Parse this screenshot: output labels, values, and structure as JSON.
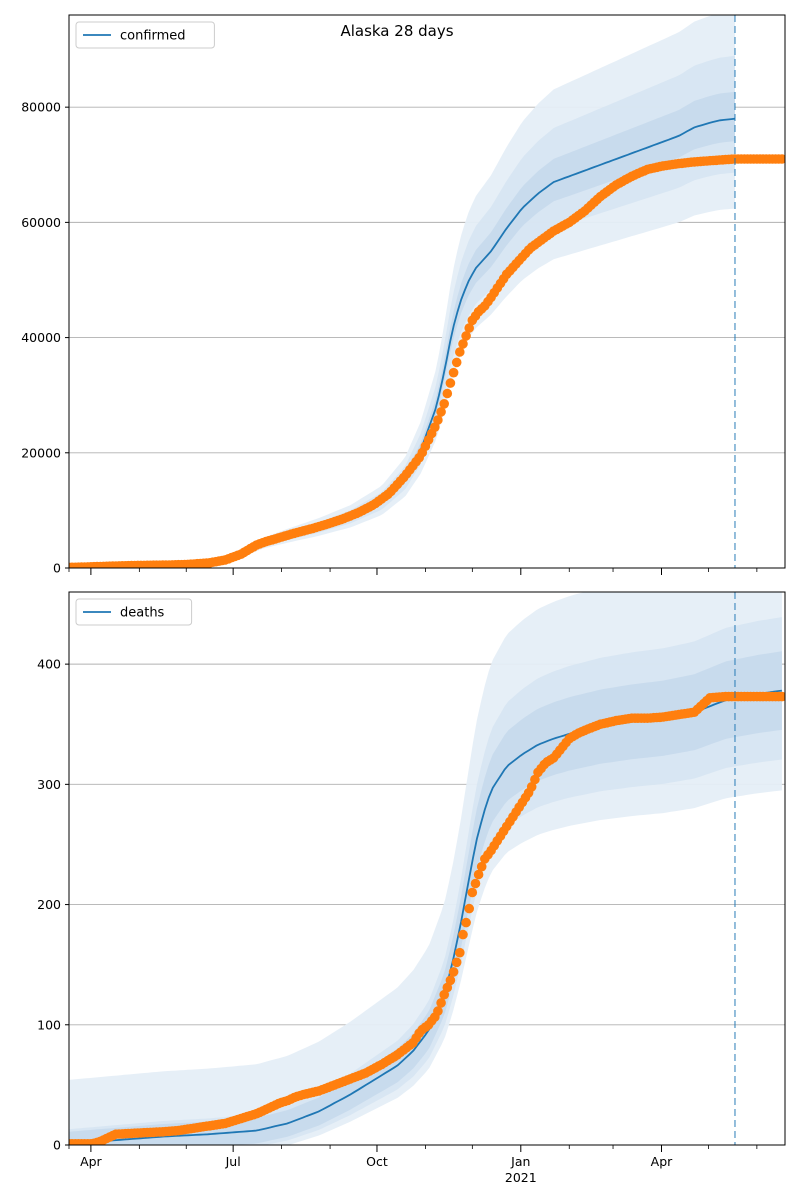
{
  "figure": {
    "title": "Alaska 28 days",
    "x_axis_ticks": [
      {
        "label": "Apr",
        "day": 14
      },
      {
        "label": "Jul",
        "day": 105
      },
      {
        "label": "Oct",
        "day": 197
      },
      {
        "label": "Jan",
        "day": 289
      },
      {
        "label": "Apr",
        "day": 379
      }
    ],
    "x_minor_days": [
      0,
      45,
      75,
      136,
      167,
      228,
      258,
      320,
      348,
      409,
      440
    ],
    "x_year_label": {
      "label": "2021",
      "day": 289
    },
    "forecast_day": 426
  },
  "chart_data": [
    {
      "type": "line",
      "title": "Alaska 28 days",
      "legend": {
        "entries": [
          "confirmed"
        ],
        "placement": "top-left"
      },
      "grid": "horizontal",
      "xlabel": "",
      "ylabel": "",
      "xlim": [
        "2020-03-17",
        "2021-06-18"
      ],
      "ylim": [
        0,
        96000
      ],
      "yticks": [
        0,
        20000,
        40000,
        60000,
        80000
      ],
      "observed": {
        "marker_color": "#ff7f0e",
        "start": "2020-03-17",
        "end": "2021-06-18",
        "x_days": [
          0,
          14,
          30,
          45,
          60,
          75,
          90,
          100,
          110,
          115,
          120,
          125,
          135,
          145,
          155,
          165,
          175,
          185,
          195,
          205,
          215,
          225,
          235,
          240,
          245,
          250,
          255,
          258,
          262,
          266,
          270,
          275,
          280,
          285,
          290,
          295,
          300,
          310,
          320,
          330,
          340,
          350,
          360,
          370,
          380,
          390,
          400,
          410,
          420,
          426,
          432,
          440,
          446,
          456
        ],
        "values": [
          100,
          200,
          350,
          450,
          500,
          600,
          900,
          1400,
          2400,
          3200,
          4000,
          4500,
          5300,
          6100,
          6800,
          7600,
          8500,
          9600,
          11000,
          13000,
          16000,
          19500,
          25000,
          28500,
          33000,
          37500,
          41000,
          43000,
          44500,
          45500,
          47000,
          49000,
          51000,
          52500,
          54000,
          55500,
          56500,
          58500,
          60000,
          62000,
          64500,
          66500,
          68000,
          69200,
          69800,
          70200,
          70500,
          70700,
          70900,
          71000,
          71000,
          71000,
          71000,
          71000
        ]
      },
      "model": {
        "name": "confirmed",
        "color": "#1f77b4",
        "end": "2021-05-18",
        "x_days": [
          0,
          30,
          60,
          90,
          105,
          115,
          125,
          140,
          160,
          180,
          200,
          215,
          225,
          235,
          240,
          245,
          250,
          255,
          260,
          265,
          270,
          280,
          290,
          300,
          310,
          330,
          350,
          370,
          390,
          400,
          410,
          416,
          426
        ],
        "values": [
          50,
          150,
          300,
          700,
          1500,
          3000,
          4300,
          5500,
          7000,
          8800,
          11500,
          15500,
          20500,
          28000,
          34000,
          41000,
          46000,
          49500,
          52000,
          53500,
          55000,
          59000,
          62500,
          65000,
          67000,
          69000,
          71000,
          73000,
          75000,
          76500,
          77300,
          77700,
          78000
        ],
        "bands": [
          {
            "name": "band-inner",
            "lower_ratio": 0.95,
            "upper_ratio": 1.06
          },
          {
            "name": "band-middle",
            "lower_ratio": 0.88,
            "upper_ratio": 1.14
          },
          {
            "name": "band-outer",
            "lower_ratio": 0.8,
            "upper_ratio": 1.24
          }
        ]
      }
    },
    {
      "type": "line",
      "title": "",
      "legend": {
        "entries": [
          "deaths"
        ],
        "placement": "top-left"
      },
      "grid": "horizontal",
      "xlabel": "",
      "ylabel": "",
      "xlim": [
        "2020-03-17",
        "2021-06-18"
      ],
      "ylim": [
        0,
        460
      ],
      "yticks": [
        0,
        100,
        200,
        300,
        400
      ],
      "observed": {
        "marker_color": "#ff7f0e",
        "start": "2020-03-17",
        "end": "2021-06-18",
        "x_days": [
          0,
          15,
          20,
          25,
          30,
          45,
          60,
          70,
          80,
          90,
          100,
          110,
          120,
          130,
          135,
          140,
          145,
          150,
          160,
          170,
          180,
          190,
          200,
          210,
          215,
          220,
          225,
          230,
          235,
          240,
          245,
          250,
          252,
          255,
          258,
          262,
          266,
          270,
          275,
          280,
          285,
          290,
          295,
          300,
          305,
          310,
          315,
          320,
          325,
          330,
          340,
          350,
          360,
          370,
          380,
          390,
          400,
          410,
          420,
          426,
          440,
          456
        ],
        "values": [
          1,
          1,
          3,
          6,
          9,
          10,
          11,
          12,
          14,
          16,
          18,
          22,
          26,
          32,
          35,
          37,
          40,
          42,
          45,
          50,
          55,
          60,
          67,
          75,
          80,
          85,
          95,
          100,
          108,
          125,
          140,
          160,
          175,
          190,
          210,
          225,
          238,
          245,
          255,
          265,
          275,
          285,
          295,
          310,
          318,
          322,
          330,
          338,
          342,
          345,
          350,
          353,
          355,
          355,
          356,
          358,
          360,
          372,
          373,
          373,
          373,
          373
        ]
      },
      "model": {
        "name": "deaths",
        "color": "#1f77b4",
        "end": "2021-06-18",
        "x_days": [
          0,
          30,
          60,
          90,
          120,
          140,
          160,
          180,
          200,
          210,
          220,
          230,
          240,
          245,
          250,
          255,
          260,
          265,
          270,
          275,
          280,
          290,
          300,
          310,
          320,
          340,
          360,
          380,
          400,
          410,
          420,
          440,
          456
        ],
        "values": [
          1,
          4,
          7,
          9,
          12,
          18,
          28,
          42,
          58,
          66,
          78,
          95,
          125,
          150,
          180,
          215,
          250,
          275,
          295,
          305,
          315,
          325,
          333,
          338,
          342,
          348,
          352,
          355,
          360,
          365,
          370,
          375,
          378
        ],
        "bands": [
          {
            "name": "band-inner",
            "lower_add": -10,
            "upper_add": 10,
            "lower_ratio": 0.94,
            "upper_ratio": 1.06
          },
          {
            "name": "band-middle",
            "lower_add": -12,
            "upper_add": 12,
            "lower_ratio": 0.88,
            "upper_ratio": 1.13
          },
          {
            "name": "band-outer",
            "lower_add": -15,
            "upper_add": 53,
            "lower_ratio": 0.82,
            "upper_ratio": 1.18
          }
        ]
      }
    }
  ]
}
